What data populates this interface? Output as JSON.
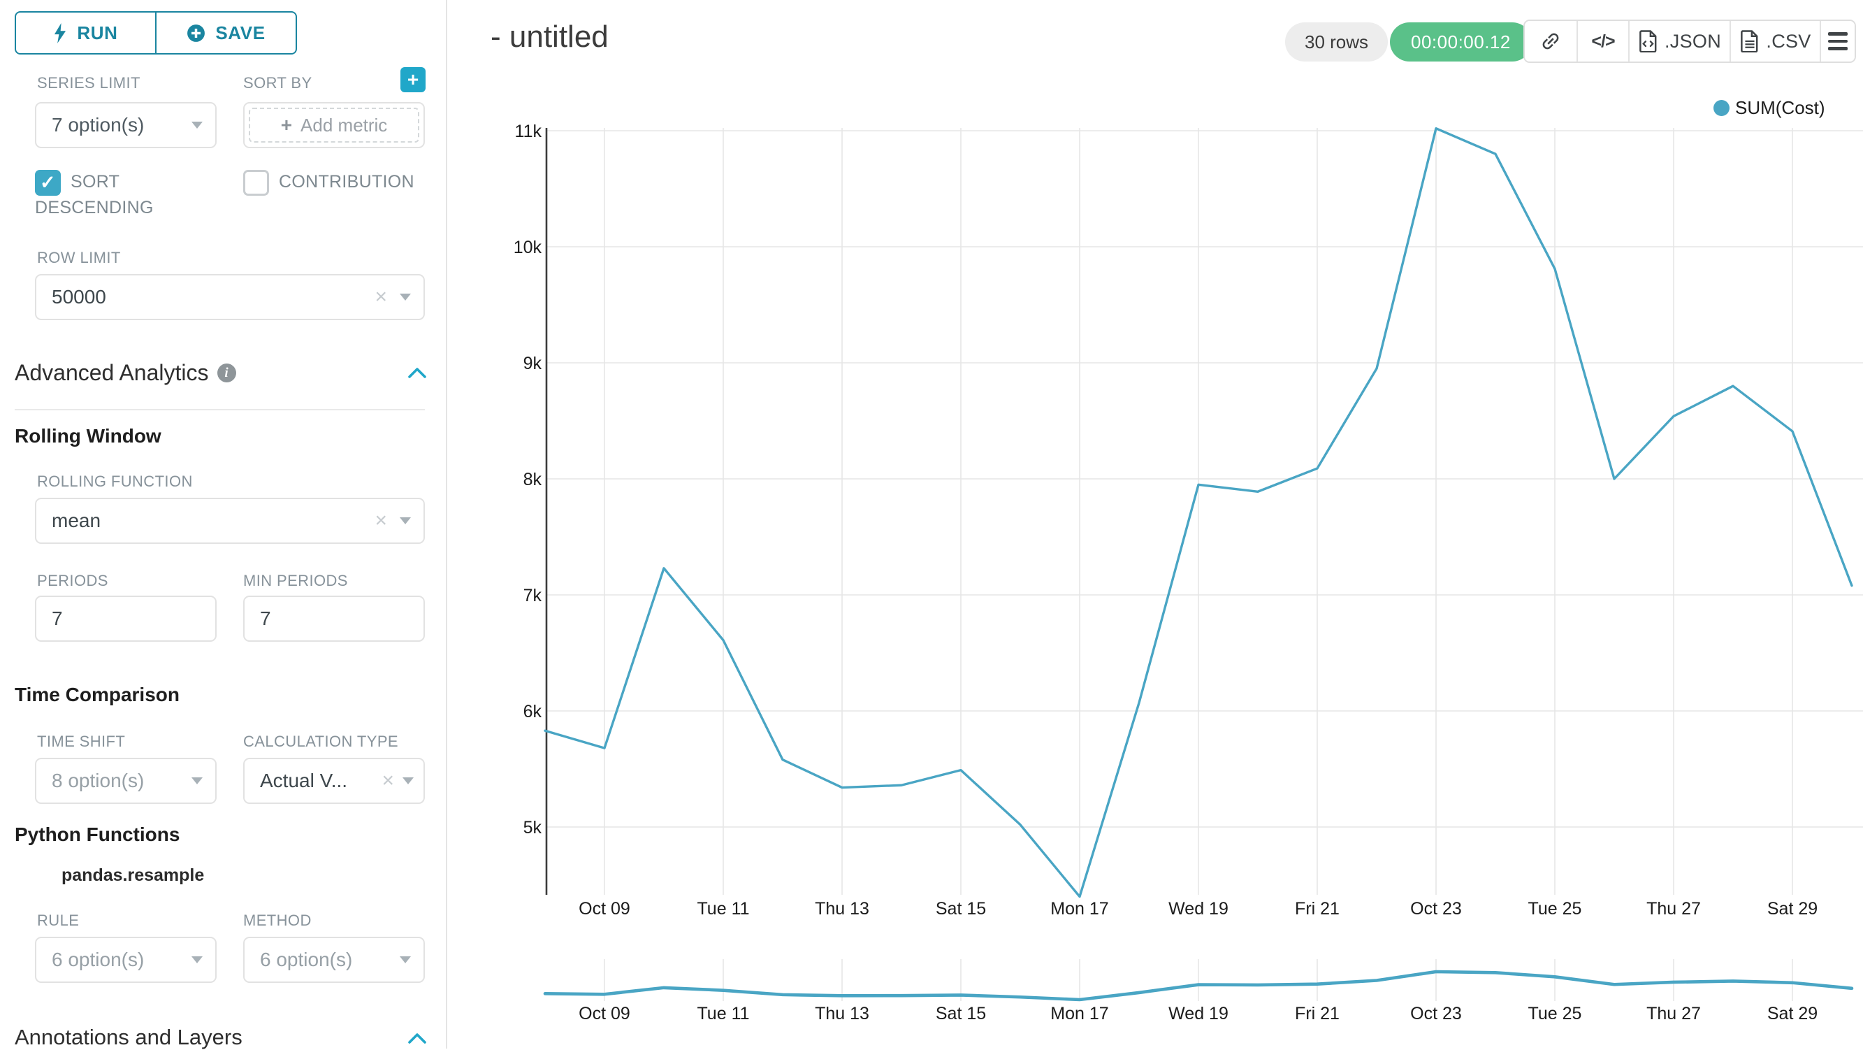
{
  "colors": {
    "accent": "#20a7c9",
    "button_teal": "#1a85a0",
    "line": "#49a5c4",
    "success_badge": "#5ac189"
  },
  "sidebar": {
    "run_label": "RUN",
    "save_label": "SAVE",
    "series_limit": {
      "label": "SERIES LIMIT",
      "value": "7 option(s)"
    },
    "sort_by": {
      "label": "SORT BY",
      "placeholder": "Add metric",
      "plus_glyph": "+"
    },
    "sort_descending": {
      "label": "SORT DESCENDING",
      "checked": true,
      "check_glyph": "✓"
    },
    "contribution": {
      "label": "CONTRIBUTION",
      "checked": false
    },
    "row_limit": {
      "label": "ROW LIMIT",
      "value": "50000"
    },
    "advanced_analytics": {
      "title": "Advanced Analytics"
    },
    "rolling_window": {
      "title": "Rolling Window",
      "rolling_function": {
        "label": "ROLLING FUNCTION",
        "value": "mean"
      },
      "periods": {
        "label": "PERIODS",
        "value": "7"
      },
      "min_periods": {
        "label": "MIN PERIODS",
        "value": "7"
      }
    },
    "time_comparison": {
      "title": "Time Comparison",
      "time_shift": {
        "label": "TIME SHIFT",
        "value": "8 option(s)"
      },
      "calculation_type": {
        "label": "CALCULATION TYPE",
        "value": "Actual V..."
      }
    },
    "python_functions": {
      "title": "Python Functions",
      "subtitle": "pandas.resample",
      "rule": {
        "label": "RULE",
        "value": "6 option(s)"
      },
      "method": {
        "label": "METHOD",
        "value": "6 option(s)"
      }
    },
    "annotations": {
      "title": "Annotations and Layers"
    }
  },
  "header": {
    "title": "- untitled",
    "rows_badge": "30 rows",
    "timer_badge": "00:00:00.12",
    "toolbar": [
      {
        "name": "copy-link",
        "icon": "link-icon",
        "label": ""
      },
      {
        "name": "view-query",
        "icon": "code-icon",
        "label": ""
      },
      {
        "name": "export-json",
        "icon": "file-code-icon",
        "label": ".JSON"
      },
      {
        "name": "export-csv",
        "icon": "file-text-icon",
        "label": ".CSV"
      },
      {
        "name": "chart-menu",
        "icon": "hamburger-icon",
        "label": ""
      }
    ]
  },
  "chart_data": {
    "type": "line",
    "title": "",
    "legend_label": "SUM(Cost)",
    "legend_position": "top-right",
    "grid": true,
    "x_categories": [
      "Oct 08",
      "Oct 09",
      "Oct 10",
      "Oct 11",
      "Oct 12",
      "Oct 13",
      "Oct 14",
      "Oct 15",
      "Oct 16",
      "Oct 17",
      "Oct 18",
      "Oct 19",
      "Oct 20",
      "Oct 21",
      "Oct 22",
      "Oct 23",
      "Oct 24",
      "Oct 25",
      "Oct 26",
      "Oct 27",
      "Oct 28",
      "Oct 29",
      "Oct 30"
    ],
    "series": [
      {
        "name": "SUM(Cost)",
        "values": [
          5830,
          5680,
          7230,
          6610,
          5580,
          5340,
          5360,
          5490,
          5020,
          4400,
          6070,
          7950,
          7890,
          8090,
          8950,
          11020,
          10800,
          9810,
          8000,
          8540,
          8800,
          8410,
          7080
        ]
      }
    ],
    "x_ticks": [
      {
        "index": 1,
        "label": "Oct 09"
      },
      {
        "index": 3,
        "label": "Tue 11"
      },
      {
        "index": 5,
        "label": "Thu 13"
      },
      {
        "index": 7,
        "label": "Sat 15"
      },
      {
        "index": 9,
        "label": "Mon 17"
      },
      {
        "index": 11,
        "label": "Wed 19"
      },
      {
        "index": 13,
        "label": "Fri 21"
      },
      {
        "index": 15,
        "label": "Oct 23"
      },
      {
        "index": 17,
        "label": "Tue 25"
      },
      {
        "index": 19,
        "label": "Thu 27"
      },
      {
        "index": 21,
        "label": "Sat 29"
      }
    ],
    "y_ticks": [
      {
        "value": 5000,
        "label": "5k"
      },
      {
        "value": 6000,
        "label": "6k"
      },
      {
        "value": 7000,
        "label": "7k"
      },
      {
        "value": 8000,
        "label": "8k"
      },
      {
        "value": 9000,
        "label": "9k"
      },
      {
        "value": 10000,
        "label": "10k"
      },
      {
        "value": 11000,
        "label": "11k"
      }
    ],
    "ylim": [
      4300,
      11100
    ],
    "has_preview_strip": true
  }
}
